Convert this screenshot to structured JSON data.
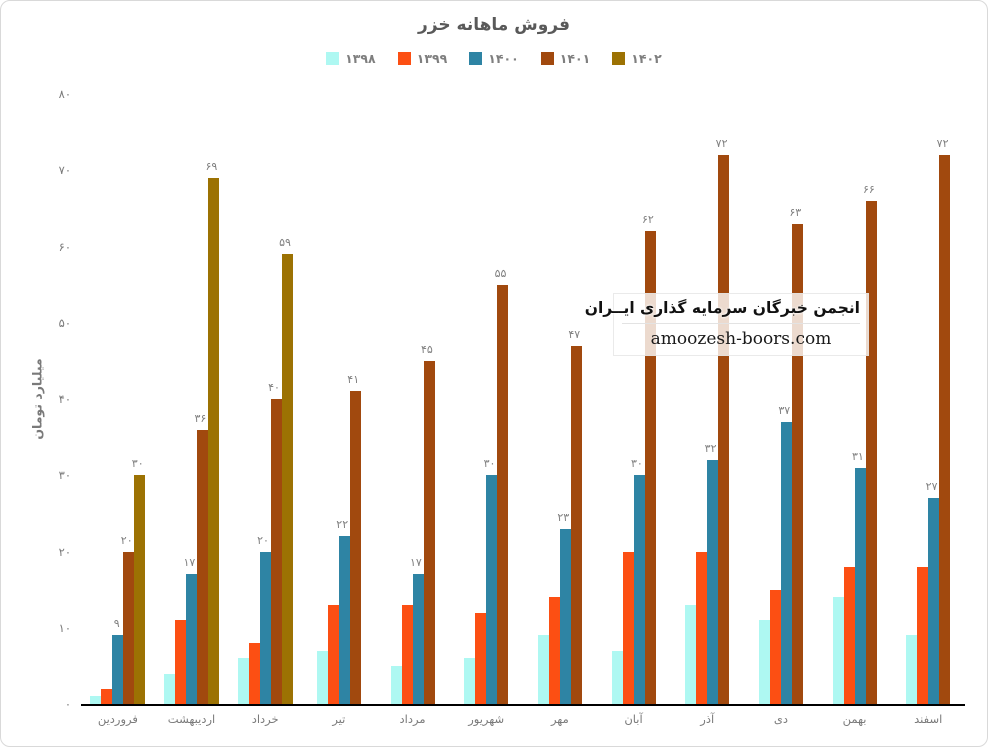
{
  "chart_data": {
    "type": "bar",
    "title": "فروش ماهانه خزر",
    "ylabel": "میلیارد تومان",
    "ylim": [
      0,
      80
    ],
    "ytick_step": 10,
    "yticks": [
      "۰",
      "۱۰",
      "۲۰",
      "۳۰",
      "۴۰",
      "۵۰",
      "۶۰",
      "۷۰",
      "۸۰"
    ],
    "grid": false,
    "legend_position": "top-center",
    "value_label_digits": "persian",
    "categories": [
      "فروردین",
      "اردیبهشت",
      "خرداد",
      "تیر",
      "مرداد",
      "شهریور",
      "مهر",
      "آبان",
      "آذر",
      "دی",
      "بهمن",
      "اسفند"
    ],
    "series": [
      {
        "name": "۱۳۹۸",
        "color": "#aef8f2",
        "labeled": false,
        "values": [
          1,
          4,
          6,
          7,
          5,
          6,
          9,
          7,
          13,
          11,
          14,
          9
        ]
      },
      {
        "name": "۱۳۹۹",
        "color": "#fc4f13",
        "labeled": false,
        "values": [
          2,
          11,
          8,
          13,
          13,
          12,
          14,
          20,
          20,
          15,
          18,
          18
        ]
      },
      {
        "name": "۱۴۰۰",
        "color": "#2e84a4",
        "labeled": true,
        "values": [
          9,
          17,
          20,
          22,
          17,
          30,
          23,
          30,
          32,
          37,
          31,
          27
        ]
      },
      {
        "name": "۱۴۰۱",
        "color": "#a1490e",
        "labeled": true,
        "values": [
          20,
          36,
          40,
          41,
          45,
          55,
          47,
          62,
          72,
          63,
          66,
          72
        ]
      },
      {
        "name": "۱۴۰۲",
        "color": "#9c7203",
        "labeled": true,
        "values": [
          30,
          69,
          59,
          null,
          null,
          null,
          null,
          null,
          null,
          null,
          null,
          null
        ]
      }
    ]
  },
  "watermark": {
    "line1": "انجمن خبرگان سرمایه گذاری ایــران",
    "line2": "amoozesh-boors.com"
  }
}
